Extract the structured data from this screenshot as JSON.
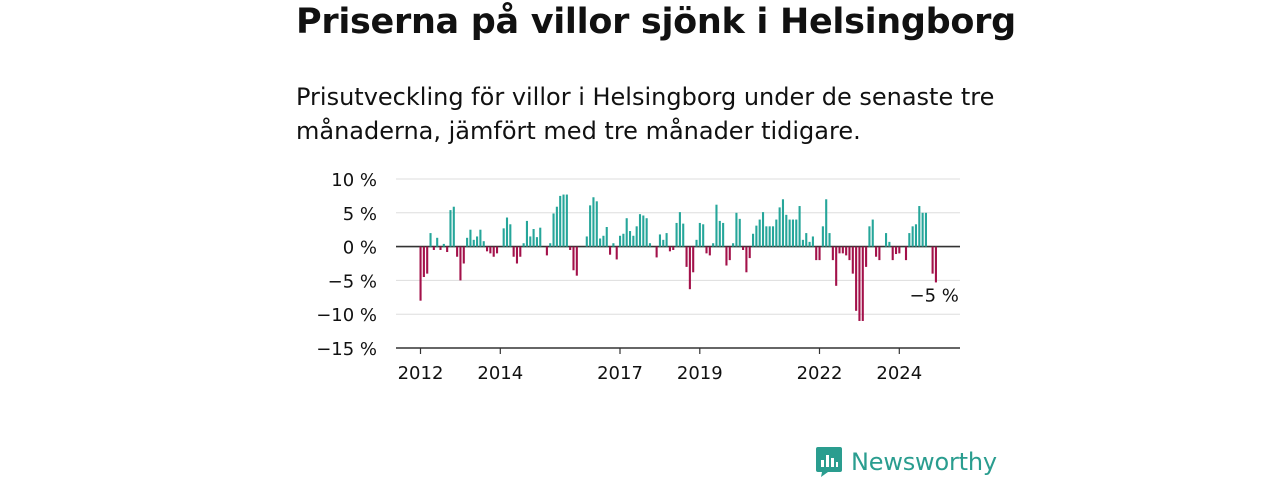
{
  "header": {
    "title": "Priserna på villor sjönk i Helsingborg",
    "subtitle": "Prisutveckling för villor i Helsingborg under de senaste tre månaderna, jämfört med tre månader tidigare."
  },
  "chart_data": {
    "type": "bar",
    "title": "Priserna på villor sjönk i Helsingborg",
    "subtitle": "Prisutveckling för villor i Helsingborg under de senaste tre månaderna, jämfört med tre månader tidigare.",
    "xlabel": "",
    "ylabel": "",
    "ylim": [
      -15,
      10
    ],
    "y_ticks": [
      10,
      5,
      0,
      -5,
      -10,
      -15
    ],
    "y_tick_labels": [
      "10 %",
      "5 %",
      "0 %",
      "−5 %",
      "−10 %",
      "−15 %"
    ],
    "x_ticks": [
      "2012",
      "2014",
      "2017",
      "2019",
      "2022",
      "2024"
    ],
    "grid": true,
    "colors": {
      "positive": "#26a69a",
      "negative": "#a3114a"
    },
    "annotation": {
      "label": "−5 %",
      "value": -5
    },
    "x_start": "2012-01",
    "x_interval": "month",
    "values": [
      -8,
      -4.5,
      -4,
      2,
      -0.5,
      1.3,
      -0.5,
      0.4,
      -0.8,
      5.4,
      5.9,
      -1.5,
      -5,
      -2.5,
      1.3,
      2.5,
      1,
      1.5,
      2.5,
      0.8,
      -0.7,
      -1,
      -1.5,
      -1,
      0,
      2.7,
      4.3,
      3.3,
      -1.5,
      -2.5,
      -1.5,
      0.5,
      3.8,
      1.5,
      2.6,
      1.4,
      2.8,
      0,
      -1.3,
      0.5,
      4.9,
      5.9,
      7.5,
      7.7,
      7.7,
      -0.5,
      -3.5,
      -4.3,
      0,
      0,
      1.5,
      6.1,
      7.3,
      6.7,
      1.2,
      1.6,
      2.9,
      -1.2,
      0.5,
      -1.9,
      1.6,
      1.9,
      4.2,
      2.3,
      1.6,
      3,
      4.8,
      4.6,
      4.2,
      0.5,
      0,
      -1.6,
      1.8,
      1,
      2,
      -0.7,
      -0.5,
      3.5,
      5.1,
      3.4,
      -3,
      -6.3,
      -3.8,
      1,
      3.5,
      3.3,
      -1,
      -1.3,
      0.5,
      6.2,
      3.8,
      3.5,
      -2.8,
      -2,
      0.5,
      5,
      4.1,
      -0.5,
      -3.8,
      -1.7,
      1.9,
      3.1,
      4,
      5.1,
      3,
      3,
      3,
      4,
      5.8,
      7,
      4.7,
      4,
      4,
      4,
      6,
      1,
      2,
      0.7,
      1.5,
      -2,
      -2,
      3,
      7,
      2,
      -2,
      -5.8,
      -1,
      -1,
      -1.3,
      -2,
      -4,
      -9.5,
      -11,
      -11,
      -3,
      3,
      4,
      -1.5,
      -2,
      0,
      2,
      0.7,
      -2,
      -1.1,
      -1,
      0,
      -2,
      2,
      3,
      3.3,
      6,
      5,
      5,
      0,
      -4,
      -5.3
    ]
  },
  "branding": {
    "logo_text": "Newsworthy",
    "logo_icon": "newsworthy-bar-chart-icon",
    "color": "#2a9d8f"
  }
}
